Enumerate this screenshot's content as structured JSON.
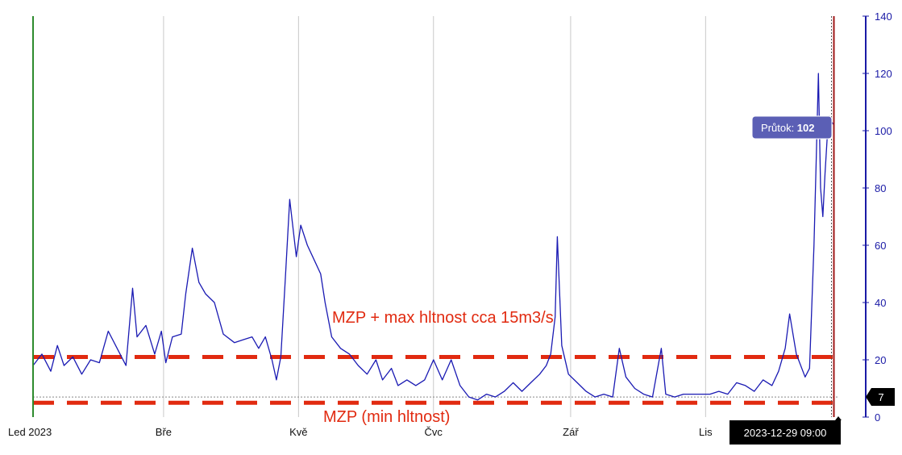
{
  "chart_data": {
    "type": "line",
    "title": "",
    "x_axis": {
      "start": "2023-01-01",
      "end": "2023-12-31",
      "ticks": [
        {
          "label": "Led 2023",
          "date": "2023-01-01"
        },
        {
          "label": "Bře",
          "date": "2023-03-01"
        },
        {
          "label": "Kvě",
          "date": "2023-05-01"
        },
        {
          "label": "Čvc",
          "date": "2023-07-01"
        },
        {
          "label": "Zář",
          "date": "2023-09-01"
        },
        {
          "label": "Lis",
          "date": "2023-11-01"
        }
      ]
    },
    "y_axis": {
      "side": "right",
      "min": 0,
      "max": 140,
      "ticks": [
        0,
        20,
        40,
        60,
        80,
        100,
        120,
        140
      ]
    },
    "grid": {
      "vertical": true,
      "horizontal": false
    },
    "series": [
      {
        "name": "Průtok",
        "color": "#1a1ab3",
        "points": [
          [
            "2023-01-01",
            18
          ],
          [
            "2023-01-05",
            22
          ],
          [
            "2023-01-09",
            16
          ],
          [
            "2023-01-12",
            25
          ],
          [
            "2023-01-15",
            18
          ],
          [
            "2023-01-19",
            21
          ],
          [
            "2023-01-23",
            15
          ],
          [
            "2023-01-27",
            20
          ],
          [
            "2023-01-31",
            19
          ],
          [
            "2023-02-04",
            30
          ],
          [
            "2023-02-08",
            24
          ],
          [
            "2023-02-12",
            18
          ],
          [
            "2023-02-15",
            45
          ],
          [
            "2023-02-17",
            28
          ],
          [
            "2023-02-21",
            32
          ],
          [
            "2023-02-25",
            22
          ],
          [
            "2023-02-28",
            30
          ],
          [
            "2023-03-02",
            19
          ],
          [
            "2023-03-05",
            28
          ],
          [
            "2023-03-09",
            29
          ],
          [
            "2023-03-11",
            43
          ],
          [
            "2023-03-14",
            59
          ],
          [
            "2023-03-17",
            47
          ],
          [
            "2023-03-20",
            43
          ],
          [
            "2023-03-24",
            40
          ],
          [
            "2023-03-28",
            29
          ],
          [
            "2023-04-02",
            26
          ],
          [
            "2023-04-06",
            27
          ],
          [
            "2023-04-10",
            28
          ],
          [
            "2023-04-13",
            24
          ],
          [
            "2023-04-16",
            28
          ],
          [
            "2023-04-19",
            20
          ],
          [
            "2023-04-21",
            13
          ],
          [
            "2023-04-23",
            21
          ],
          [
            "2023-04-25",
            48
          ],
          [
            "2023-04-27",
            76
          ],
          [
            "2023-04-30",
            56
          ],
          [
            "2023-05-02",
            67
          ],
          [
            "2023-05-05",
            60
          ],
          [
            "2023-05-08",
            55
          ],
          [
            "2023-05-11",
            50
          ],
          [
            "2023-05-13",
            40
          ],
          [
            "2023-05-16",
            28
          ],
          [
            "2023-05-20",
            24
          ],
          [
            "2023-05-24",
            22
          ],
          [
            "2023-05-28",
            18
          ],
          [
            "2023-06-01",
            15
          ],
          [
            "2023-06-05",
            20
          ],
          [
            "2023-06-08",
            13
          ],
          [
            "2023-06-12",
            17
          ],
          [
            "2023-06-15",
            11
          ],
          [
            "2023-06-19",
            13
          ],
          [
            "2023-06-23",
            11
          ],
          [
            "2023-06-27",
            13
          ],
          [
            "2023-07-01",
            20
          ],
          [
            "2023-07-05",
            13
          ],
          [
            "2023-07-09",
            20
          ],
          [
            "2023-07-13",
            11
          ],
          [
            "2023-07-17",
            7
          ],
          [
            "2023-07-21",
            6
          ],
          [
            "2023-07-25",
            8
          ],
          [
            "2023-07-29",
            7
          ],
          [
            "2023-08-02",
            9
          ],
          [
            "2023-08-06",
            12
          ],
          [
            "2023-08-10",
            9
          ],
          [
            "2023-08-14",
            12
          ],
          [
            "2023-08-18",
            15
          ],
          [
            "2023-08-21",
            18
          ],
          [
            "2023-08-23",
            22
          ],
          [
            "2023-08-25",
            35
          ],
          [
            "2023-08-26",
            63
          ],
          [
            "2023-08-28",
            25
          ],
          [
            "2023-08-31",
            15
          ],
          [
            "2023-09-04",
            12
          ],
          [
            "2023-09-08",
            9
          ],
          [
            "2023-09-12",
            7
          ],
          [
            "2023-09-16",
            8
          ],
          [
            "2023-09-20",
            7
          ],
          [
            "2023-09-23",
            24
          ],
          [
            "2023-09-26",
            14
          ],
          [
            "2023-09-30",
            10
          ],
          [
            "2023-10-04",
            8
          ],
          [
            "2023-10-08",
            7
          ],
          [
            "2023-10-12",
            24
          ],
          [
            "2023-10-14",
            8
          ],
          [
            "2023-10-18",
            7
          ],
          [
            "2023-10-22",
            8
          ],
          [
            "2023-10-26",
            8
          ],
          [
            "2023-10-30",
            8
          ],
          [
            "2023-11-03",
            8
          ],
          [
            "2023-11-07",
            9
          ],
          [
            "2023-11-11",
            8
          ],
          [
            "2023-11-15",
            12
          ],
          [
            "2023-11-19",
            11
          ],
          [
            "2023-11-23",
            9
          ],
          [
            "2023-11-27",
            13
          ],
          [
            "2023-12-01",
            11
          ],
          [
            "2023-12-04",
            16
          ],
          [
            "2023-12-07",
            24
          ],
          [
            "2023-12-09",
            36
          ],
          [
            "2023-12-12",
            22
          ],
          [
            "2023-12-16",
            14
          ],
          [
            "2023-12-18",
            17
          ],
          [
            "2023-12-20",
            60
          ],
          [
            "2023-12-21",
            90
          ],
          [
            "2023-12-22",
            120
          ],
          [
            "2023-12-23",
            80
          ],
          [
            "2023-12-24",
            70
          ],
          [
            "2023-12-25",
            85
          ],
          [
            "2023-12-26",
            98
          ],
          [
            "2023-12-27",
            105
          ],
          [
            "2023-12-28",
            103
          ],
          [
            "2023-12-29",
            102
          ]
        ]
      }
    ],
    "reference_lines": [
      {
        "name": "max",
        "value": 21,
        "color": "#e12a10",
        "label": "MZP + max hltnost cca 15m3/s"
      },
      {
        "name": "min",
        "value": 5,
        "color": "#e12a10",
        "label": "MZP  (min hltnost)"
      },
      {
        "name": "current",
        "value": 7,
        "color": "#888888",
        "badge": "7"
      }
    ],
    "markers": [
      {
        "name": "start",
        "date": "2023-01-01",
        "color": "#2e8b2e"
      },
      {
        "name": "cursor",
        "date": "2023-12-29",
        "color": "#a01818"
      }
    ],
    "tooltip": {
      "label": "Průtok: ",
      "value": "102",
      "date": "2023-12-29"
    },
    "cursor_label": "2023-12-29 09:00"
  }
}
